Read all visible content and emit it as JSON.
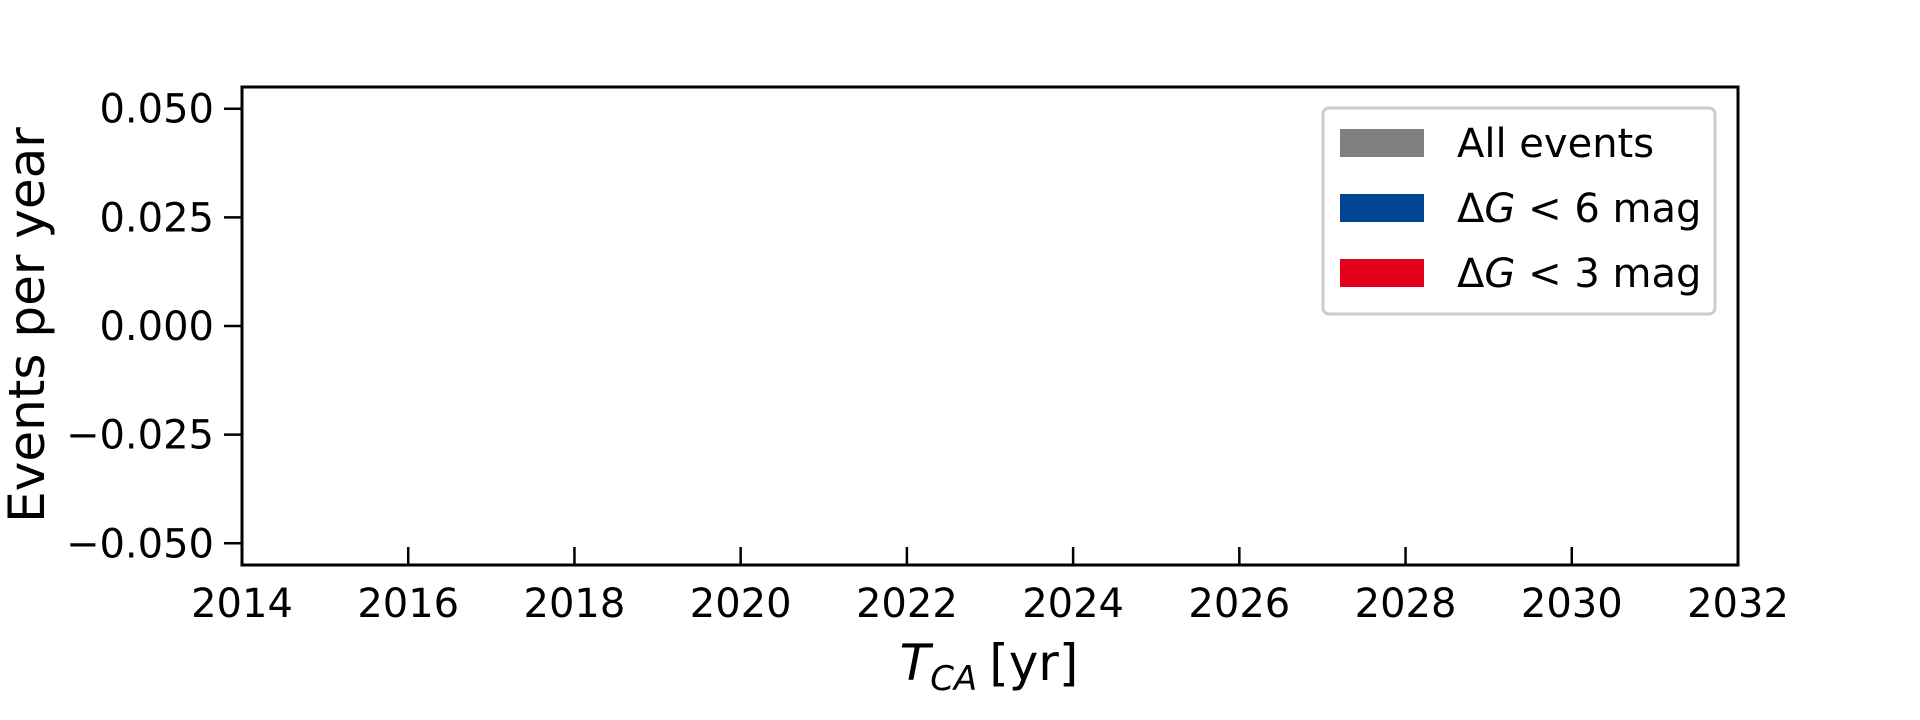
{
  "chart_data": {
    "type": "bar",
    "xlabel_main": "T",
    "xlabel_sub": "CA",
    "xlabel_unit": "[yr]",
    "ylabel": "Events per year",
    "xlim": [
      2014,
      2032
    ],
    "ylim": [
      -0.055,
      0.055
    ],
    "xticks": [
      2014,
      2016,
      2018,
      2020,
      2022,
      2024,
      2026,
      2028,
      2030,
      2032
    ],
    "xtick_labels": [
      "2014",
      "2016",
      "2018",
      "2020",
      "2022",
      "2024",
      "2026",
      "2028",
      "2030",
      "2032"
    ],
    "yticks": [
      0.05,
      0.025,
      0.0,
      -0.025,
      -0.05
    ],
    "ytick_labels": [
      "0.050",
      "0.025",
      "0.000",
      "−0.025",
      "−0.050"
    ],
    "grid": false,
    "legend_placement": "top-right",
    "series": [
      {
        "name": "All events",
        "color": "#808080",
        "values": []
      },
      {
        "name": "ΔG < 6 mag",
        "color": "#004494",
        "values": []
      },
      {
        "name": "ΔG < 3 mag",
        "color": "#e2001a",
        "values": []
      }
    ],
    "legend": [
      {
        "plain": "All events",
        "color": "#808080"
      },
      {
        "delta": "Δ",
        "var": "G",
        "rest": " < 6 mag",
        "color": "#004494"
      },
      {
        "delta": "Δ",
        "var": "G",
        "rest": " < 3 mag",
        "color": "#e2001a"
      }
    ]
  }
}
